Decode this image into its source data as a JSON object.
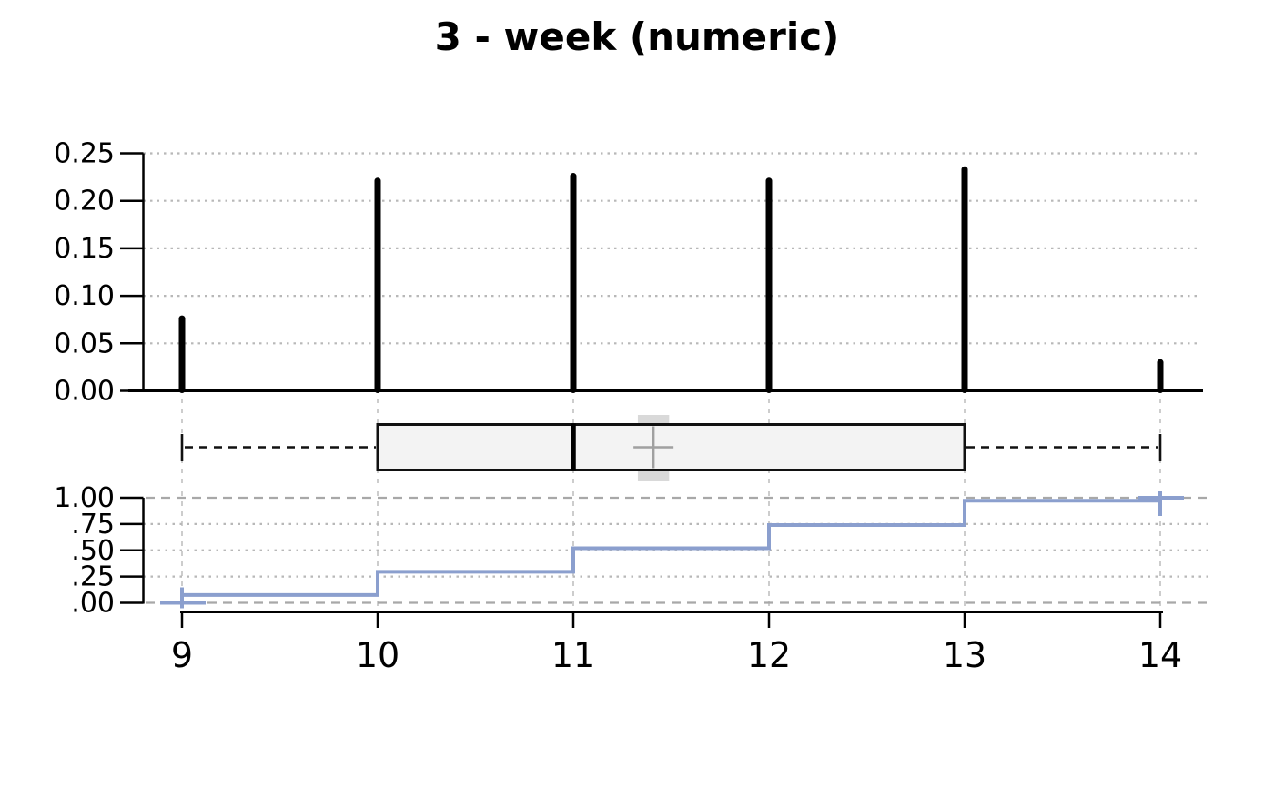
{
  "title": "3 - week (numeric)",
  "colors": {
    "spike": "#000000",
    "axis": "#000000",
    "tick_label": "#000000",
    "box_fill": "#f3f3f3",
    "box_border": "#111111",
    "median": "#000000",
    "whisker": "#111111",
    "mean_marker": "#a0a0a0",
    "mean_band": "#d9d9d9",
    "ecdf_line": "#8b9fce",
    "grid_dotted": "#b8b8b8",
    "grid_dashed": "#a8a8a8",
    "grid_vertical": "#cdcdcd"
  },
  "x_axis": {
    "ticks": [
      9,
      10,
      11,
      12,
      13,
      14
    ],
    "tick_labels": [
      "9",
      "10",
      "11",
      "12",
      "13",
      "14"
    ]
  },
  "chart_data": [
    {
      "type": "bar",
      "subtype": "pmf-spike-plot",
      "panel": "top",
      "x": [
        9,
        10,
        11,
        12,
        13,
        14
      ],
      "values": [
        0.076,
        0.221,
        0.226,
        0.221,
        0.233,
        0.03
      ],
      "ylim": [
        0,
        0.25
      ],
      "ytick_values": [
        0.0,
        0.05,
        0.1,
        0.15,
        0.2,
        0.25
      ],
      "ytick_labels": [
        "0.00",
        "0.05",
        "0.10",
        "0.15",
        "0.20",
        "0.25"
      ],
      "grid": "horizontal-dotted",
      "legend": "none"
    },
    {
      "type": "boxplot",
      "panel": "middle",
      "orientation": "horizontal",
      "whisker_low": 9,
      "q1": 10,
      "median": 11,
      "q3": 13,
      "whisker_high": 14,
      "mean": 11.41,
      "mean_band": [
        11.33,
        11.49
      ],
      "grid": "vertical-dashed"
    },
    {
      "type": "line",
      "subtype": "ecdf-step",
      "panel": "bottom",
      "x": [
        9,
        10,
        11,
        12,
        13,
        14
      ],
      "cumulative": [
        0.075,
        0.295,
        0.52,
        0.74,
        0.972,
        1.0
      ],
      "ylim": [
        0,
        1
      ],
      "ytick_values": [
        1.0,
        0.75,
        0.5,
        0.25,
        0.0
      ],
      "ytick_labels": [
        "1.00",
        ".75",
        ".50",
        ".25",
        ".00"
      ],
      "grid": "horizontal-mixed-and-vertical-dashed",
      "endpoint_markers": "plus"
    }
  ]
}
